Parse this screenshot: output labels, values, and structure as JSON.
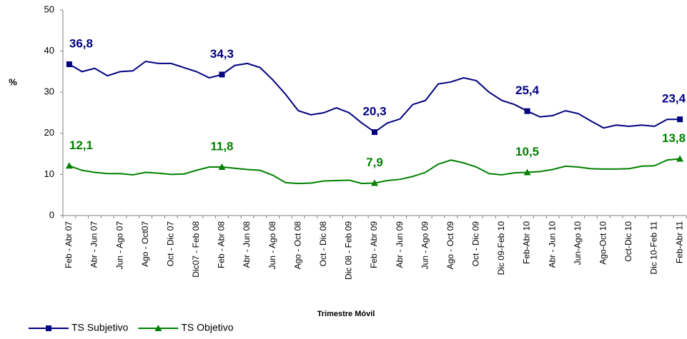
{
  "chart_data": {
    "type": "line",
    "xlabel": "Trimestre Móvil",
    "ylabel": "%",
    "categories": [
      "Feb - Abr 07",
      null,
      "Abr - Jun 07",
      null,
      "Jun - Ago 07",
      null,
      "Ago - Oct07",
      null,
      "Oct - Dic 07",
      null,
      "Dic07 - Feb 08",
      null,
      "Feb - Abr 08",
      null,
      "Abr - Jun 08",
      null,
      "Jun - Ago 08",
      null,
      "Ago - Oct 08",
      null,
      "Oct - Dic 08",
      null,
      "Dic 08 - Feb 09",
      null,
      "Feb - Abr 09",
      null,
      "Abr - Jun 09",
      null,
      "Jun - Ago 09",
      null,
      "Ago - Oct 09",
      null,
      "Oct - Dic 09",
      null,
      "Dic 09-Feb 10",
      null,
      "Feb-Abr 10",
      null,
      "Abr - Jun 10",
      null,
      "Jun-Ago 10",
      null,
      "Ago-Oct 10",
      null,
      "Oct-Dic 10",
      null,
      "Dic 10-Feb 11",
      null,
      "Feb-Abr 11"
    ],
    "series": [
      {
        "name": "TS Subjetivo",
        "color": "#000080",
        "marker": "square",
        "values": [
          36.8,
          35.0,
          35.8,
          34.0,
          35.0,
          35.2,
          37.5,
          37.0,
          37.0,
          36.0,
          35.0,
          33.5,
          34.3,
          36.5,
          37.0,
          36.0,
          33.0,
          29.5,
          25.5,
          24.5,
          25.0,
          26.2,
          25.0,
          22.5,
          20.3,
          22.5,
          23.5,
          27.0,
          28.0,
          32.0,
          32.5,
          33.5,
          32.8,
          30.0,
          28.0,
          27.0,
          25.4,
          24.0,
          24.3,
          25.5,
          24.8,
          23.0,
          21.3,
          22.0,
          21.7,
          22.0,
          21.7,
          23.4,
          23.4
        ],
        "value_labels": [
          "36,8",
          null,
          null,
          null,
          null,
          null,
          null,
          null,
          null,
          null,
          null,
          null,
          "34,3",
          null,
          null,
          null,
          null,
          null,
          null,
          null,
          null,
          null,
          null,
          null,
          "20,3",
          null,
          null,
          null,
          null,
          null,
          null,
          null,
          null,
          null,
          null,
          null,
          "25,4",
          null,
          null,
          null,
          null,
          null,
          null,
          null,
          null,
          null,
          null,
          null,
          "23,4"
        ]
      },
      {
        "name": "TS Objetivo",
        "color": "#008000",
        "marker": "triangle",
        "values": [
          12.1,
          11.0,
          10.5,
          10.2,
          10.2,
          9.9,
          10.5,
          10.3,
          10.0,
          10.1,
          11.0,
          11.8,
          11.8,
          11.5,
          11.2,
          11.0,
          9.8,
          8.0,
          7.8,
          7.9,
          8.4,
          8.5,
          8.6,
          7.8,
          7.9,
          8.5,
          8.8,
          9.5,
          10.5,
          12.5,
          13.5,
          12.8,
          11.8,
          10.2,
          9.9,
          10.4,
          10.5,
          10.7,
          11.2,
          12.0,
          11.8,
          11.4,
          11.3,
          11.3,
          11.4,
          12.0,
          12.1,
          13.5,
          13.8
        ],
        "value_labels": [
          "12,1",
          null,
          null,
          null,
          null,
          null,
          null,
          null,
          null,
          null,
          null,
          null,
          "11,8",
          null,
          null,
          null,
          null,
          null,
          null,
          null,
          null,
          null,
          null,
          null,
          "7,9",
          null,
          null,
          null,
          null,
          null,
          null,
          null,
          null,
          null,
          null,
          null,
          "10,5",
          null,
          null,
          null,
          null,
          null,
          null,
          null,
          null,
          null,
          null,
          null,
          "13,8"
        ]
      }
    ],
    "ylim": [
      0,
      50
    ],
    "yticks": [
      0,
      10,
      20,
      30,
      40,
      50
    ],
    "grid": false,
    "legend": "bottom-left"
  }
}
